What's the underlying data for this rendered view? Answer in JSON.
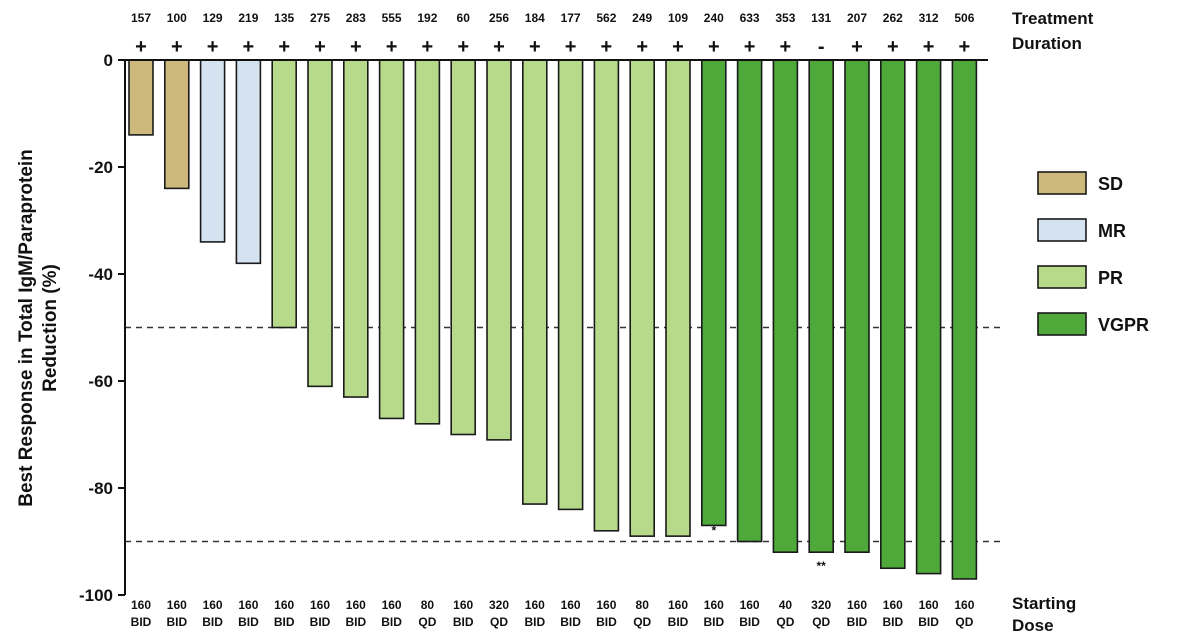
{
  "chart_data": {
    "type": "bar",
    "ylabel": [
      "Best Response in Total IgM/Paraprotein",
      "Reduction (%)"
    ],
    "ylim": [
      -100,
      0
    ],
    "yticks": [
      "0",
      "-20",
      "-40",
      "-60",
      "-80",
      "-100"
    ],
    "ytick_values": [
      0,
      -20,
      -40,
      -60,
      -80,
      -100
    ],
    "reference_lines": [
      -50,
      -90
    ],
    "top_header": [
      "Treatment",
      "Duration"
    ],
    "bottom_header": [
      "Starting",
      "Dose"
    ],
    "legend_position": "right",
    "legend": [
      {
        "key": "SD",
        "label": "SD",
        "color": "#CDB97C"
      },
      {
        "key": "MR",
        "label": "MR",
        "color": "#D5E3F0"
      },
      {
        "key": "PR",
        "label": "PR",
        "color": "#B6D98A"
      },
      {
        "key": "VGPR",
        "label": "VGPR",
        "color": "#4EA83A"
      }
    ],
    "bars": [
      {
        "value": -14,
        "category": "SD",
        "duration": "157",
        "status": "+",
        "dose": [
          "160",
          "BID"
        ]
      },
      {
        "value": -24,
        "category": "SD",
        "duration": "100",
        "status": "+",
        "dose": [
          "160",
          "BID"
        ]
      },
      {
        "value": -34,
        "category": "MR",
        "duration": "129",
        "status": "+",
        "dose": [
          "160",
          "BID"
        ]
      },
      {
        "value": -38,
        "category": "MR",
        "duration": "219",
        "status": "+",
        "dose": [
          "160",
          "BID"
        ]
      },
      {
        "value": -50,
        "category": "PR",
        "duration": "135",
        "status": "+",
        "dose": [
          "160",
          "BID"
        ]
      },
      {
        "value": -61,
        "category": "PR",
        "duration": "275",
        "status": "+",
        "dose": [
          "160",
          "BID"
        ]
      },
      {
        "value": -63,
        "category": "PR",
        "duration": "283",
        "status": "+",
        "dose": [
          "160",
          "BID"
        ]
      },
      {
        "value": -67,
        "category": "PR",
        "duration": "555",
        "status": "+",
        "dose": [
          "160",
          "BID"
        ]
      },
      {
        "value": -68,
        "category": "PR",
        "duration": "192",
        "status": "+",
        "dose": [
          "80",
          "QD"
        ]
      },
      {
        "value": -70,
        "category": "PR",
        "duration": "60",
        "status": "+",
        "dose": [
          "160",
          "BID"
        ]
      },
      {
        "value": -71,
        "category": "PR",
        "duration": "256",
        "status": "+",
        "dose": [
          "320",
          "QD"
        ]
      },
      {
        "value": -83,
        "category": "PR",
        "duration": "184",
        "status": "+",
        "dose": [
          "160",
          "BID"
        ]
      },
      {
        "value": -84,
        "category": "PR",
        "duration": "177",
        "status": "+",
        "dose": [
          "160",
          "BID"
        ]
      },
      {
        "value": -88,
        "category": "PR",
        "duration": "562",
        "status": "+",
        "dose": [
          "160",
          "BID"
        ]
      },
      {
        "value": -89,
        "category": "PR",
        "duration": "249",
        "status": "+",
        "dose": [
          "80",
          "QD"
        ]
      },
      {
        "value": -89,
        "category": "PR",
        "duration": "109",
        "status": "+",
        "dose": [
          "160",
          "BID"
        ]
      },
      {
        "value": -87,
        "category": "VGPR",
        "duration": "240",
        "status": "+",
        "dose": [
          "160",
          "BID"
        ],
        "annotation": "*"
      },
      {
        "value": -90,
        "category": "VGPR",
        "duration": "633",
        "status": "+",
        "dose": [
          "160",
          "BID"
        ]
      },
      {
        "value": -92,
        "category": "VGPR",
        "duration": "353",
        "status": "+",
        "dose": [
          "40",
          "QD"
        ]
      },
      {
        "value": -92,
        "category": "VGPR",
        "duration": "131",
        "status": "-",
        "dose": [
          "320",
          "QD"
        ],
        "annotation": "**"
      },
      {
        "value": -92,
        "category": "VGPR",
        "duration": "207",
        "status": "+",
        "dose": [
          "160",
          "BID"
        ]
      },
      {
        "value": -95,
        "category": "VGPR",
        "duration": "262",
        "status": "+",
        "dose": [
          "160",
          "BID"
        ]
      },
      {
        "value": -96,
        "category": "VGPR",
        "duration": "312",
        "status": "+",
        "dose": [
          "160",
          "BID"
        ]
      },
      {
        "value": -97,
        "category": "VGPR",
        "duration": "506",
        "status": "+",
        "dose": [
          "160",
          "QD"
        ]
      }
    ]
  }
}
